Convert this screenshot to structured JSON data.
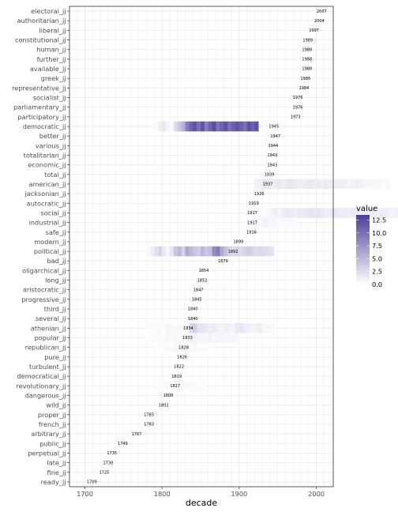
{
  "chart_data": {
    "type": "heatmap",
    "xlabel": "decade",
    "ylabel": "",
    "xlim": [
      1680,
      2022
    ],
    "x_ticks": [
      1700,
      1800,
      1900,
      2000
    ],
    "grid": true,
    "legend": {
      "title": "value",
      "position": "right",
      "ticks": [
        0.0,
        2.5,
        5.0,
        7.5,
        10.0,
        12.5
      ],
      "tick_labels": [
        "0.0",
        "2.5",
        "5.0",
        "7.5",
        "10.0",
        "12.5"
      ],
      "min": 0,
      "max": 13.5
    },
    "colors": {
      "low": "#ffffff",
      "high": "#4a3f98",
      "grid": "#ebebeb",
      "axis_text": "#4d4d4d",
      "border": "#333333"
    },
    "rows": [
      {
        "label": "electoral_jj",
        "year": 2007
      },
      {
        "label": "authoritarian_jj",
        "year": 2004
      },
      {
        "label": "liberal_jj",
        "year": 1997
      },
      {
        "label": "constitutional_jj",
        "year": 1989
      },
      {
        "label": "human_jj",
        "year": 1988
      },
      {
        "label": "further_jj",
        "year": 1988
      },
      {
        "label": "available_jj",
        "year": 1988
      },
      {
        "label": "greek_jj",
        "year": 1986
      },
      {
        "label": "representative_jj",
        "year": 1984
      },
      {
        "label": "socialist_jj",
        "year": 1976
      },
      {
        "label": "parliamentary_jj",
        "year": 1976
      },
      {
        "label": "participatory_jj",
        "year": 1973
      },
      {
        "label": "democratic_jj",
        "year": 1945
      },
      {
        "label": "better_jj",
        "year": 1947
      },
      {
        "label": "various_jj",
        "year": 1944
      },
      {
        "label": "totalitarian_jj",
        "year": 1943
      },
      {
        "label": "economic_jj",
        "year": 1943
      },
      {
        "label": "total_jj",
        "year": 1939
      },
      {
        "label": "american_jj",
        "year": 1937
      },
      {
        "label": "jacksonian_jj",
        "year": 1926
      },
      {
        "label": "autocratic_jj",
        "year": 1919
      },
      {
        "label": "social_jj",
        "year": 1917
      },
      {
        "label": "industrial_jj",
        "year": 1917
      },
      {
        "label": "safe_jj",
        "year": 1916
      },
      {
        "label": "modern_jj",
        "year": 1899
      },
      {
        "label": "political_jj",
        "year": 1892
      },
      {
        "label": "bad_jj",
        "year": 1879
      },
      {
        "label": "oligarchical_jj",
        "year": 1854
      },
      {
        "label": "long_jj",
        "year": 1852
      },
      {
        "label": "aristocratic_jj",
        "year": 1847
      },
      {
        "label": "progressive_jj",
        "year": 1845
      },
      {
        "label": "third_jj",
        "year": 1840
      },
      {
        "label": "several_jj",
        "year": 1840
      },
      {
        "label": "athenian_jj",
        "year": 1834
      },
      {
        "label": "popular_jj",
        "year": 1833
      },
      {
        "label": "republican_jj",
        "year": 1828
      },
      {
        "label": "pure_jj",
        "year": 1826
      },
      {
        "label": "turbulent_jj",
        "year": 1822
      },
      {
        "label": "democratical_jj",
        "year": 1819
      },
      {
        "label": "revolutionary_jj",
        "year": 1817
      },
      {
        "label": "dangerous_jj",
        "year": 1808
      },
      {
        "label": "wild_jj",
        "year": 1802
      },
      {
        "label": "proper_jj",
        "year": 1783
      },
      {
        "label": "french_jj",
        "year": 1783
      },
      {
        "label": "arbitrary_jj",
        "year": 1767
      },
      {
        "label": "public_jj",
        "year": 1749
      },
      {
        "label": "perpetual_jj",
        "year": 1735
      },
      {
        "label": "late_jj",
        "year": 1730
      },
      {
        "label": "fine_jj",
        "year": 1725
      },
      {
        "label": "ready_jj",
        "year": 1709
      }
    ],
    "cells": [
      {
        "row": "democratic_jj",
        "x_start": 1790,
        "values": [
          0.3,
          1.2,
          1.8,
          0.8,
          0.3,
          2.5,
          4,
          5.5,
          9,
          11,
          12,
          10,
          12,
          9,
          11,
          12.5,
          10,
          11,
          12,
          10,
          11,
          12,
          11,
          10,
          12,
          11,
          12
        ]
      },
      {
        "row": "political_jj",
        "x_start": 1780,
        "values": [
          0.5,
          1.2,
          2.2,
          3,
          1.5,
          0.8,
          2,
          4,
          5,
          3,
          6,
          5,
          4,
          3.5,
          5,
          4,
          4.5,
          8,
          9,
          6,
          4.5,
          3,
          2.5,
          3,
          2.5,
          3,
          3.5,
          3,
          2.5,
          2.8,
          2.5,
          2.2,
          2
        ]
      },
      {
        "row": "social_jj",
        "x_start": 1920,
        "values": [
          0.4,
          0.5,
          0.3,
          0.5,
          0.8,
          1.2,
          0.8,
          1.3,
          1.6,
          1.5,
          1.2,
          1.5,
          1.4,
          1.6,
          2,
          1.7,
          1.8,
          1.5,
          1.2,
          1.3,
          1.8,
          1.5,
          1.3,
          1.4,
          1.2,
          1.5,
          1.4,
          1.3,
          1.5,
          1.4,
          1.2,
          1,
          1.2,
          1.3,
          1.1,
          0.9,
          1,
          1.3,
          1.2,
          1.1,
          1
        ]
      },
      {
        "row": "athenian_jj",
        "x_start": 1780,
        "values": [
          0.3,
          0.2,
          0.4,
          0.5,
          0.3,
          0.8,
          0.6,
          0.4,
          0.5,
          0.6,
          0.5,
          2.8,
          3.5,
          2,
          1.8,
          1.5,
          1.2,
          1.5,
          1,
          0.8,
          1.2,
          1,
          0.8,
          1.5,
          1.8,
          1.2,
          1,
          0.8,
          1,
          1.2,
          0.5,
          0.6,
          0.4
        ]
      },
      {
        "row": "american_jj",
        "x_start": 1920,
        "values": [
          1,
          1.2,
          1.8,
          1.6,
          1.3,
          1.4,
          1.6,
          1.2,
          1.5,
          1.8,
          1.4,
          1.2,
          1.1,
          1.5,
          1.6,
          1.3,
          1.4,
          1.2,
          1.5,
          1.3,
          1,
          1.2,
          1.1,
          0.9,
          0.8,
          1,
          1.2,
          0.9,
          0.7,
          0.6,
          0.7,
          0.5,
          0.6,
          0.4,
          0.5
        ]
      },
      {
        "row": "popular_jj",
        "x_start": 1780,
        "values": [
          0.2,
          0.2,
          0.3,
          0.4,
          0.3,
          0.5,
          0.4,
          0.5,
          0.4,
          0.6,
          0.5,
          0.8,
          0.9,
          0.7,
          0.8,
          0.6,
          0.9,
          0.7,
          0.8,
          0.7,
          0.6,
          0.7,
          0.6,
          0.5
        ]
      },
      {
        "row": "industrial_jj",
        "x_start": 1910,
        "values": [
          0.3,
          0.6,
          0.8,
          0.7,
          0.9,
          0.8,
          0.6,
          0.5,
          0.4,
          0.5,
          0.3,
          0.4,
          0.3
        ]
      },
      {
        "row": "revolutionary_jj",
        "x_start": 1790,
        "values": [
          0.2,
          0.3,
          0.4,
          0.6,
          0.3,
          0.8,
          0.6,
          0.5,
          0.4,
          0.3,
          0.4,
          0.3,
          0.2
        ]
      },
      {
        "row": "republican_jj",
        "x_start": 1790,
        "values": [
          0.2,
          0.3,
          0.2,
          0.4,
          0.3,
          0.5,
          0.6,
          0.4,
          0.5,
          0.4,
          0.6,
          0.3,
          0.4,
          0.3
        ]
      }
    ]
  }
}
